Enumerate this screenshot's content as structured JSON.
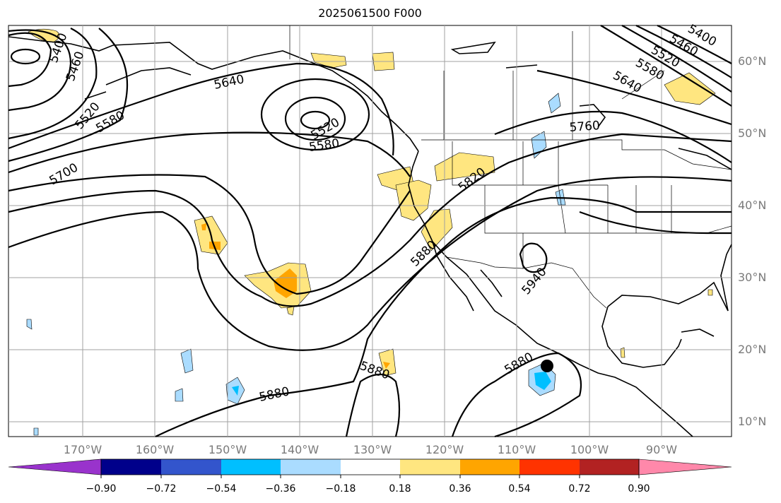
{
  "title": "2025061500 F000",
  "lat_labels": [
    "60°N",
    "50°N",
    "40°N",
    "30°N",
    "20°N",
    "10°N"
  ],
  "lon_labels": [
    "170°W",
    "160°W",
    "150°W",
    "140°W",
    "130°W",
    "120°W",
    "110°W",
    "100°W",
    "90°W"
  ],
  "contour_labels": [
    "5400",
    "5460",
    "5520",
    "5580",
    "5640",
    "5520",
    "5580",
    "5700",
    "5640",
    "5580",
    "5520",
    "5460",
    "5400",
    "5760",
    "5820",
    "5880",
    "5940",
    "5880",
    "5880",
    "5880"
  ],
  "colorbar": {
    "tick_labels": [
      "−0.90",
      "−0.72",
      "−0.54",
      "−0.36",
      "−0.18",
      "0.18",
      "0.36",
      "0.54",
      "0.72",
      "0.90"
    ],
    "colors": [
      "#9933cc",
      "#00008b",
      "#3355cc",
      "#00bfff",
      "#aadcff",
      "#ffffff",
      "#ffe680",
      "#ffa500",
      "#ff3300",
      "#b22222",
      "#ff88aa"
    ]
  },
  "colors": {
    "contour": "#000000",
    "grid": "#a0a0a0",
    "positive_light": "#ffe680",
    "positive_mid": "#ffa500",
    "negative_light": "#aadcff",
    "negative_mid": "#00bfff"
  },
  "marker": "storm-center-marker"
}
